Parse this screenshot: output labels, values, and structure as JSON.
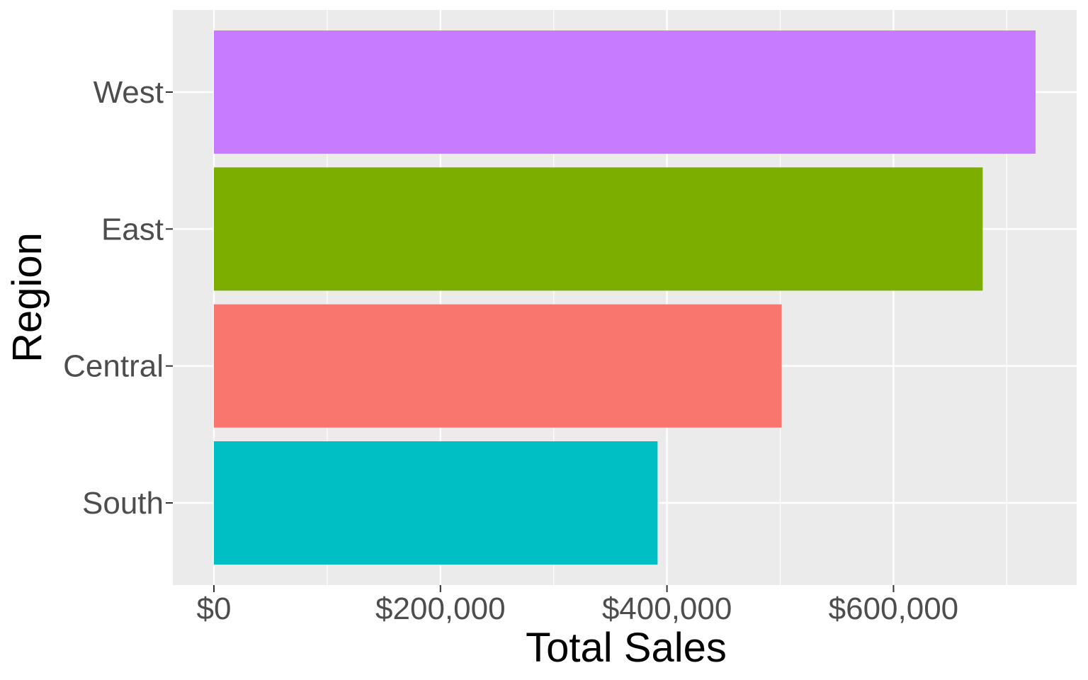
{
  "chart_data": {
    "type": "bar",
    "orientation": "horizontal",
    "xlabel": "Total Sales",
    "ylabel": "Region",
    "categories": [
      "South",
      "Central",
      "East",
      "West"
    ],
    "values": [
      391722,
      501240,
      678781,
      725458
    ],
    "colors": [
      "#00BFC4",
      "#F8766D",
      "#7CAE00",
      "#C77CFF"
    ],
    "xlim": [
      -36273,
      761731
    ],
    "xticks": [
      0,
      200000,
      400000,
      600000
    ],
    "xtick_labels": [
      "$0",
      "$200,000",
      "$400,000",
      "$600,000"
    ],
    "grid": true,
    "panel_background": "#EBEBEB",
    "legend": "none"
  }
}
